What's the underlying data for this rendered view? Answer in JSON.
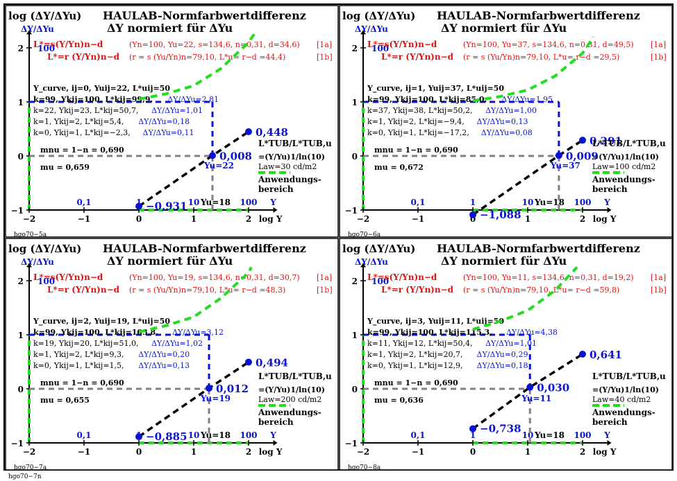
{
  "page_label": "hgo70−7n",
  "chart_data": [
    {
      "type": "line",
      "title": "HAULAB-Normfarbwertdifferenz",
      "subtitle": "ΔY normiert für ΔYu",
      "ylabel": "log (ΔY/ΔYu)",
      "ylabel2": "ΔY/ΔYu",
      "xlabel": "log Y",
      "xlim": [
        -2,
        2.6
      ],
      "ylim": [
        -1,
        2.3
      ],
      "x_ticks": [
        "−2",
        "−1",
        "0",
        "1",
        "2"
      ],
      "y_ticks": [
        "−1",
        "0",
        "1",
        "2"
      ],
      "lin_ticks": [
        "0,1",
        "1",
        "10",
        "100"
      ],
      "y_lin_label": "100",
      "yu_label": "Yu=18",
      "axis_Y": "Y",
      "eq1_left": "L*=s(Y/Yn)n−d",
      "eq1_right": "(Yn=100, Yu=22, s=134,6, n=0,31, d=34,6)",
      "eq1_tag": "[1a]",
      "eq2_left": "L*=r (Y/Yn)n−d",
      "eq2_right": "(r = s (Yu/Yn)n=79,10, L*u= r−d =44,4)",
      "eq2_tag": "[1b]",
      "info": {
        "l1": "Y_curve, ij=0, Yuij=22, L*uij=50",
        "l2a": "k=99, Ykij=100, L*kij=99,9, ",
        "l2b": "ΔY/ΔYu=2,81",
        "l3a": "k=22, Ykij=23, L*kij=50,7, ",
        "l3b": "ΔY/ΔYu=1,01",
        "l4a": "k=1, Ykij=2, L*kij=5,4, ",
        "l4b": "ΔY/ΔYu=0,18",
        "l5a": "k=0, Ykij=1, L*kij=−2,3, ",
        "l5b": "ΔY/ΔYu=0,11"
      },
      "mnu": "mnu = 1−n = 0,690",
      "mu": "mu = 0,659",
      "yu_mark": "Yu=22",
      "yu_logY": 1.342,
      "points": [
        {
          "x": 0.0,
          "y": -0.931,
          "label": "−0,931"
        },
        {
          "x": 1.342,
          "y": 0.008,
          "label": "0,008"
        },
        {
          "x": 2.0,
          "y": 0.448,
          "label": "0,448"
        }
      ],
      "green_dash": [
        [
          0,
          1.05
        ],
        [
          0.5,
          1.15
        ],
        [
          1.0,
          1.3
        ],
        [
          1.5,
          1.62
        ],
        [
          2.0,
          2.1
        ],
        [
          2.1,
          2.25
        ]
      ],
      "legend": {
        "l1": "L*TUB/L*TUB,u",
        "l2": "=(Y/Yu)1/ln(10)",
        "l3": "Law=30 cd/m2",
        "l4": "Anwendungs-",
        "l5": "bereich"
      },
      "code": "hgo70−5a"
    },
    {
      "type": "line",
      "title": "HAULAB-Normfarbwertdifferenz",
      "subtitle": "ΔY normiert für ΔYu",
      "ylabel": "log (ΔY/ΔYu)",
      "ylabel2": "ΔY/ΔYu",
      "xlabel": "log Y",
      "xlim": [
        -2,
        2.6
      ],
      "ylim": [
        -1,
        2.3
      ],
      "x_ticks": [
        "−2",
        "−1",
        "0",
        "1",
        "2"
      ],
      "y_ticks": [
        "−1",
        "0",
        "1",
        "2"
      ],
      "lin_ticks": [
        "0,1",
        "1",
        "10",
        "100"
      ],
      "y_lin_label": "100",
      "yu_label": "Yu=18",
      "axis_Y": "Y",
      "eq1_left": "L*=s(Y/Yn)n−d",
      "eq1_right": "(Yn=100, Yu=37, s=134,6, n=0,31, d=49,5)",
      "eq1_tag": "[1a]",
      "eq2_left": "L*=r (Y/Yn)n−d",
      "eq2_right": "(r = s (Yu/Yn)n=79,10, L*u= r−d =29,5)",
      "eq2_tag": "[1b]",
      "info": {
        "l1": "Y_curve, ij=1, Yuij=37, L*uij=50",
        "l2a": "k=99, Ykij=100, L*kij=85,0, ",
        "l2b": "ΔY/ΔYu=1,95",
        "l3a": "k=37, Ykij=38, L*kij=50,2, ",
        "l3b": "ΔY/ΔYu=1,00",
        "l4a": "k=1, Ykij=2, L*kij=−9,4, ",
        "l4b": "ΔY/ΔYu=0,13",
        "l5a": "k=0, Ykij=1, L*kij=−17,2, ",
        "l5b": "ΔY/ΔYu=0,08"
      },
      "mnu": "mnu = 1−n = 0,690",
      "mu": "mu = 0,672",
      "yu_mark": "Yu=37",
      "yu_logY": 1.568,
      "points": [
        {
          "x": 0.0,
          "y": -1.088,
          "label": "−1,088"
        },
        {
          "x": 1.568,
          "y": 0.009,
          "label": "0,009"
        },
        {
          "x": 2.0,
          "y": 0.291,
          "label": "0,291"
        }
      ],
      "green_dash": [
        [
          0,
          1.02
        ],
        [
          0.5,
          1.1
        ],
        [
          1.0,
          1.22
        ],
        [
          1.5,
          1.48
        ],
        [
          2.0,
          1.9
        ],
        [
          2.2,
          2.2
        ]
      ],
      "legend": {
        "l1": "L*TUB/L*TUB,u",
        "l2": "=(Y/Yu)1/ln(10)",
        "l3": "Law=100 cd/m2",
        "l4": "Anwendungs-",
        "l5": "bereich"
      },
      "code": "hgo70−6a"
    },
    {
      "type": "line",
      "title": "HAULAB-Normfarbwertdifferenz",
      "subtitle": "ΔY normiert für ΔYu",
      "ylabel": "log (ΔY/ΔYu)",
      "ylabel2": "ΔY/ΔYu",
      "xlabel": "log Y",
      "xlim": [
        -2,
        2.6
      ],
      "ylim": [
        -1,
        2.3
      ],
      "x_ticks": [
        "−2",
        "−1",
        "0",
        "1",
        "2"
      ],
      "y_ticks": [
        "−1",
        "0",
        "1",
        "2"
      ],
      "lin_ticks": [
        "0,1",
        "1",
        "10",
        "100"
      ],
      "y_lin_label": "100",
      "yu_label": "Yu=18",
      "axis_Y": "Y",
      "eq1_left": "L*=s(Y/Yn)n−d",
      "eq1_right": "(Yn=100, Yu=19, s=134,6, n=0,31, d=30,7)",
      "eq1_tag": "[1a]",
      "eq2_left": "L*=r (Y/Yn)n−d",
      "eq2_right": "(r = s (Yu/Yn)n=79,10, L*u= r−d =48,3)",
      "eq2_tag": "[1b]",
      "info": {
        "l1": "Y_curve, ij=2, Yuij=19, L*uij=50",
        "l2a": "k=99, Ykij=100, L*kij=103,8, ",
        "l2b": "ΔY/ΔYu=3,12",
        "l3a": "k=19, Ykij=20, L*kij=51,0, ",
        "l3b": "ΔY/ΔYu=1,02",
        "l4a": "k=1, Ykij=2, L*kij=9,3, ",
        "l4b": "ΔY/ΔYu=0,20",
        "l5a": "k=0, Ykij=1, L*kij=1,5, ",
        "l5b": "ΔY/ΔYu=0,13"
      },
      "mnu": "mnu = 1−n = 0,690",
      "mu": "mu = 0,655",
      "yu_mark": "Yu=19",
      "yu_logY": 1.279,
      "points": [
        {
          "x": 0.0,
          "y": -0.885,
          "label": "−0,885"
        },
        {
          "x": 1.279,
          "y": 0.012,
          "label": "0,012"
        },
        {
          "x": 2.0,
          "y": 0.494,
          "label": "0,494"
        }
      ],
      "green_dash": [
        [
          0,
          1.05
        ],
        [
          0.5,
          1.17
        ],
        [
          1.0,
          1.33
        ],
        [
          1.5,
          1.68
        ],
        [
          2.0,
          2.15
        ],
        [
          2.05,
          2.25
        ]
      ],
      "legend": {
        "l1": "L*TUB/L*TUB,u",
        "l2": "=(Y/Yu)1/ln(10)",
        "l3": "Law=200 cd/m2",
        "l4": "Anwendungs-",
        "l5": "bereich"
      },
      "code": "hgo70−7a"
    },
    {
      "type": "line",
      "title": "HAULAB-Normfarbwertdifferenz",
      "subtitle": "ΔY normiert für ΔYu",
      "ylabel": "log (ΔY/ΔYu)",
      "ylabel2": "ΔY/ΔYu",
      "xlabel": "log Y",
      "xlim": [
        -2,
        2.6
      ],
      "ylim": [
        -1,
        2.3
      ],
      "x_ticks": [
        "−2",
        "−1",
        "0",
        "1",
        "2"
      ],
      "y_ticks": [
        "−1",
        "0",
        "1",
        "2"
      ],
      "lin_ticks": [
        "0,1",
        "1",
        "10",
        "100"
      ],
      "y_lin_label": "100",
      "yu_label": "Yu=18",
      "axis_Y": "Y",
      "eq1_left": "L*=s(Y/Yn)n−d",
      "eq1_right": "(Yn=100, Yu=11, s=134,6, n=0,31, d=19,2)",
      "eq1_tag": "[1a]",
      "eq2_left": "L*=r (Y/Yn)n−d",
      "eq2_right": "(r = s (Yu/Yn)n=79,10, L*u= r−d =59,8)",
      "eq2_tag": "[1b]",
      "info": {
        "l1": "Y_curve, ij=3, Yuij=11, L*uij=50",
        "l2a": "k=99, Ykij=100, L*kij=115,3, ",
        "l2b": "ΔY/ΔYu=4,38",
        "l3a": "k=11, Ykij=12, L*kij=50,4, ",
        "l3b": "ΔY/ΔYu=1,01",
        "l4a": "k=1, Ykij=2, L*kij=20,7, ",
        "l4b": "ΔY/ΔYu=0,29",
        "l5a": "k=0, Ykij=1, L*kij=12,9, ",
        "l5b": "ΔY/ΔYu=0,18"
      },
      "mnu": "mnu = 1−n = 0,690",
      "mu": "mu = 0,636",
      "yu_mark": "Yu=11",
      "yu_logY": 1.041,
      "points": [
        {
          "x": 0.0,
          "y": -0.738,
          "label": "−0,738"
        },
        {
          "x": 1.041,
          "y": 0.03,
          "label": "0,030"
        },
        {
          "x": 2.0,
          "y": 0.641,
          "label": "0,641"
        }
      ],
      "green_dash": [
        [
          0,
          1.1
        ],
        [
          0.5,
          1.25
        ],
        [
          1.0,
          1.45
        ],
        [
          1.5,
          1.82
        ],
        [
          1.9,
          2.25
        ]
      ],
      "legend": {
        "l1": "L*TUB/L*TUB,u",
        "l2": "=(Y/Yu)1/ln(10)",
        "l3": "Law=40 cd/m2",
        "l4": "Anwendungs-",
        "l5": "bereich"
      },
      "code": "hgo70−8a"
    }
  ]
}
